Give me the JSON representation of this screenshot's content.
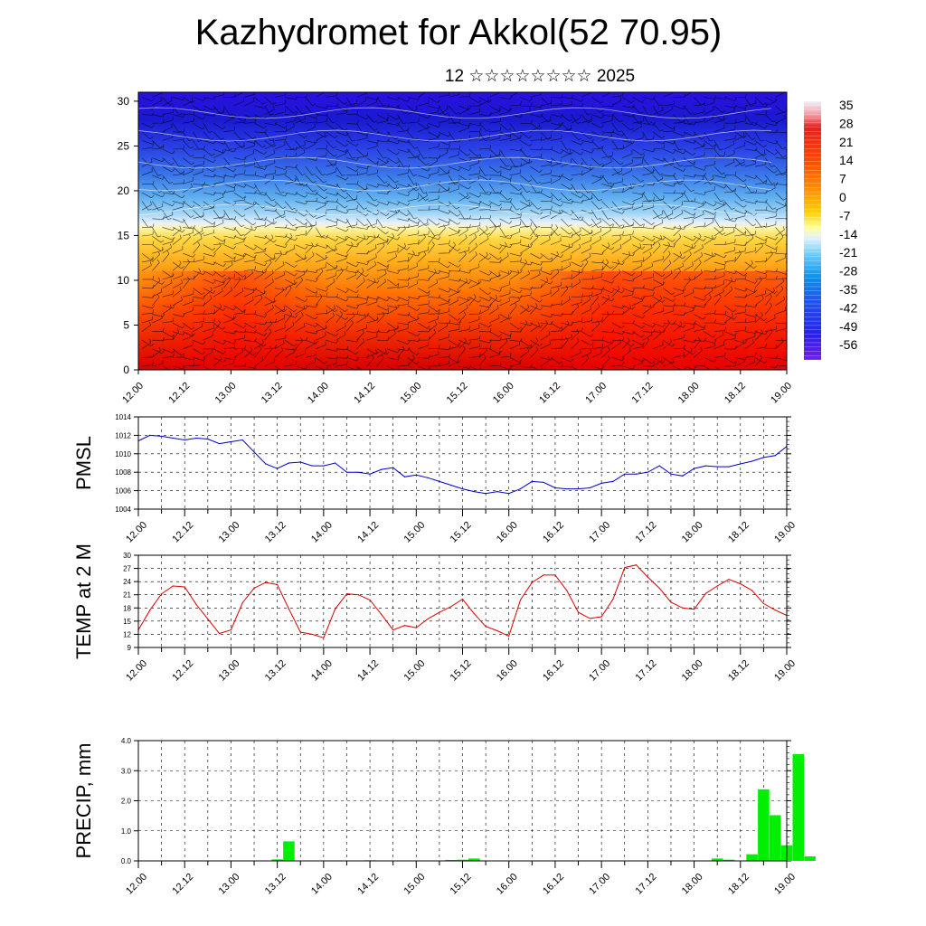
{
  "header": {
    "title": "Kazhydromet for Akkol(52 70.95)",
    "subtitle_day": "12",
    "subtitle_glyphs": "☆☆☆☆☆☆☆☆",
    "subtitle_year": "2025"
  },
  "chart_data": [
    {
      "type": "heatmap",
      "title": "",
      "xlabel": "",
      "ylabel": "",
      "x_tick_labels": [
        "12.00",
        "12.12",
        "13.00",
        "13.12",
        "14.00",
        "14.12",
        "15.00",
        "15.12",
        "16.00",
        "16.12",
        "17.00",
        "17.12",
        "18.00",
        "18.12",
        "19.00"
      ],
      "y_tick_labels": [
        "0",
        "5",
        "10",
        "15",
        "20",
        "25",
        "30"
      ],
      "ylim": [
        0,
        31
      ],
      "colorbar_labels": [
        "35",
        "28",
        "21",
        "14",
        "7",
        "0",
        "-7",
        "-14",
        "-21",
        "-28",
        "-35",
        "-42",
        "-49",
        "-56"
      ],
      "colors": {
        "low": "#1e00ff",
        "mid_cold": "#6ec8ff",
        "zero": "#fff9b0",
        "mid_warm": "#ffa020",
        "high": "#e80000"
      },
      "overlay": "wind-barbs"
    },
    {
      "type": "line",
      "ylabel": "PMSL",
      "ylim": [
        1004,
        1014
      ],
      "y_tick_labels": [
        "1004",
        "1006",
        "1008",
        "1010",
        "1012",
        "1014"
      ],
      "x_tick_labels": [
        "12.00",
        "12.12",
        "13.00",
        "13.12",
        "14.00",
        "14.12",
        "15.00",
        "15.12",
        "16.00",
        "16.12",
        "17.00",
        "17.12",
        "18.00",
        "18.12",
        "19.00"
      ],
      "line_color": "#0000cc",
      "x": [
        0,
        3,
        6,
        9,
        12,
        15,
        18,
        21,
        24,
        27,
        30,
        33,
        36,
        39,
        42,
        45,
        48,
        51,
        54,
        57,
        60,
        63,
        66,
        69,
        72,
        75,
        78,
        81,
        84,
        87,
        90,
        93,
        96,
        99,
        102,
        105,
        108,
        111,
        114,
        117,
        120,
        123,
        126,
        129,
        132,
        135,
        138,
        141,
        144,
        147,
        150,
        153,
        156,
        159,
        162,
        165,
        168
      ],
      "values": [
        1011.4,
        1012.0,
        1011.9,
        1011.7,
        1011.5,
        1011.7,
        1011.6,
        1011.1,
        1011.3,
        1011.5,
        1010.2,
        1008.9,
        1008.4,
        1009.0,
        1009.1,
        1008.7,
        1008.7,
        1009.0,
        1008.0,
        1008.0,
        1007.8,
        1008.3,
        1008.5,
        1007.5,
        1007.7,
        1007.4,
        1007.0,
        1006.6,
        1006.2,
        1005.9,
        1005.7,
        1005.9,
        1005.7,
        1006.2,
        1007.0,
        1006.9,
        1006.3,
        1006.2,
        1006.2,
        1006.3,
        1006.8,
        1007.0,
        1007.8,
        1007.8,
        1008.0,
        1008.7,
        1007.8,
        1007.6,
        1008.4,
        1008.7,
        1008.6,
        1008.6,
        1008.9,
        1009.2,
        1009.6,
        1009.8,
        1010.8
      ]
    },
    {
      "type": "line",
      "ylabel": "TEMP at 2 M",
      "ylim": [
        9,
        30
      ],
      "y_tick_labels": [
        "9",
        "12",
        "15",
        "18",
        "21",
        "24",
        "27",
        "30"
      ],
      "x_tick_labels": [
        "12.00",
        "12.12",
        "13.00",
        "13.12",
        "14.00",
        "14.12",
        "15.00",
        "15.12",
        "16.00",
        "16.12",
        "17.00",
        "17.12",
        "18.00",
        "18.12",
        "19.00"
      ],
      "line_color": "#dd0000",
      "x": [
        0,
        3,
        6,
        9,
        12,
        15,
        18,
        21,
        24,
        27,
        30,
        33,
        36,
        39,
        42,
        45,
        48,
        51,
        54,
        57,
        60,
        63,
        66,
        69,
        72,
        75,
        78,
        81,
        84,
        87,
        90,
        93,
        96,
        99,
        102,
        105,
        108,
        111,
        114,
        117,
        120,
        123,
        126,
        129,
        132,
        135,
        138,
        141,
        144,
        147,
        150,
        153,
        156,
        159,
        162,
        165,
        168
      ],
      "values": [
        13.0,
        17.5,
        21.2,
        23.0,
        22.8,
        18.8,
        15.5,
        12.2,
        13.0,
        19.2,
        22.5,
        23.8,
        23.3,
        17.8,
        12.5,
        12.0,
        11.2,
        17.8,
        21.2,
        21.0,
        19.8,
        16.5,
        13.0,
        14.0,
        13.5,
        15.5,
        17.0,
        18.3,
        20.0,
        16.7,
        13.8,
        12.8,
        11.6,
        19.8,
        23.8,
        25.5,
        25.5,
        22.0,
        17.0,
        15.6,
        16.0,
        20.0,
        27.2,
        27.8,
        25.0,
        22.5,
        19.3,
        18.0,
        17.7,
        21.3,
        23.0,
        24.5,
        23.5,
        22.0,
        19.0,
        17.5,
        16.3
      ]
    },
    {
      "type": "bar",
      "ylabel": "PRECIP, mm",
      "ylim": [
        0,
        4.0
      ],
      "y_tick_labels": [
        "0.0",
        "1.0",
        "2.0",
        "3.0",
        "4.0"
      ],
      "x_tick_labels": [
        "12.00",
        "12.12",
        "13.00",
        "13.12",
        "14.00",
        "14.12",
        "15.00",
        "15.12",
        "16.00",
        "16.12",
        "17.00",
        "17.12",
        "18.00",
        "18.12",
        "19.00"
      ],
      "bar_color": "#00ee00",
      "x": [
        36,
        39,
        60,
        81,
        87,
        81,
        84,
        87,
        90,
        150,
        153,
        159,
        162,
        165,
        168,
        171,
        174,
        177
      ],
      "values": [
        0.05,
        0.65,
        0.02,
        0.03,
        0.05,
        0.0,
        0.04,
        0.08,
        0.0,
        0.08,
        0.04,
        0.22,
        2.38,
        1.52,
        0.52,
        3.55,
        0.15,
        0.0
      ]
    }
  ]
}
